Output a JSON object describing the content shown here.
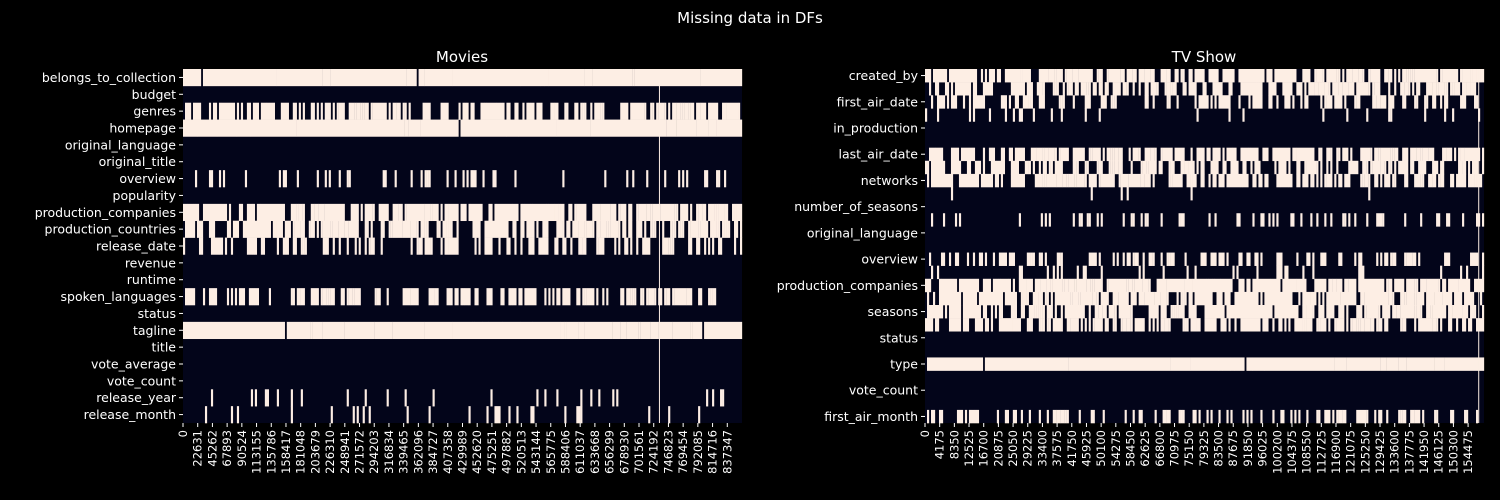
{
  "figure": {
    "suptitle": "Missing data in DFs",
    "background": "#000000"
  },
  "chart_data": [
    {
      "type": "heatmap",
      "title": "Movies",
      "colors": {
        "missing": "#fdeee4",
        "present": "#03051a",
        "axis": "#ffffff"
      },
      "legend": "none",
      "grid": false,
      "ylabels": [
        "belongs_to_collection",
        "budget",
        "genres",
        "homepage",
        "original_language",
        "original_title",
        "overview",
        "popularity",
        "production_companies",
        "production_countries",
        "release_date",
        "revenue",
        "runtime",
        "spoken_languages",
        "status",
        "tagline",
        "title",
        "vote_average",
        "vote_count",
        "release_year",
        "release_month"
      ],
      "xticks": [
        "0",
        "22631",
        "45262",
        "67893",
        "90524",
        "113155",
        "135786",
        "158417",
        "181048",
        "203679",
        "226310",
        "248941",
        "271572",
        "294203",
        "316834",
        "339465",
        "362096",
        "384727",
        "407358",
        "429989",
        "452620",
        "475251",
        "497882",
        "520513",
        "543144",
        "565775",
        "588406",
        "611037",
        "633668",
        "656299",
        "678930",
        "701561",
        "724192",
        "746823",
        "769454",
        "792085",
        "814716",
        "837347"
      ],
      "xlim": [
        0,
        860000
      ],
      "missing_density": [
        0.93,
        0.0,
        0.45,
        0.93,
        0.0,
        0.0,
        0.15,
        0.0,
        0.62,
        0.5,
        0.3,
        0.0,
        0.0,
        0.42,
        0.0,
        0.9,
        0.0,
        0.0,
        0.0,
        0.1,
        0.1
      ],
      "highlight_x": 733000
    },
    {
      "type": "heatmap",
      "title": "TV Show",
      "colors": {
        "missing": "#fdeee4",
        "present": "#03051a",
        "axis": "#ffffff"
      },
      "legend": "none",
      "grid": false,
      "ylabels": [
        "created_by",
        "",
        "first_air_date",
        "",
        "in_production",
        "",
        "last_air_date",
        "",
        "networks",
        "",
        "number_of_seasons",
        "",
        "original_language",
        "",
        "overview",
        "",
        "production_companies",
        "",
        "seasons",
        "",
        "status",
        "",
        "type",
        "",
        "vote_count",
        "",
        "first_air_month"
      ],
      "xticks": [
        "0",
        "4175",
        "8350",
        "12525",
        "16700",
        "20875",
        "25050",
        "29225",
        "33400",
        "37575",
        "41750",
        "45925",
        "50100",
        "54275",
        "58450",
        "62625",
        "66800",
        "70975",
        "75150",
        "79325",
        "83500",
        "87675",
        "91850",
        "96025",
        "100200",
        "104375",
        "108550",
        "112725",
        "116900",
        "121075",
        "125250",
        "129425",
        "133600",
        "137775",
        "141950",
        "146125",
        "150300",
        "154475"
      ],
      "xlim": [
        0,
        159000
      ],
      "missing_density": [
        0.65,
        0.45,
        0.35,
        0.1,
        0.0,
        0.0,
        0.55,
        0.45,
        0.5,
        0.02,
        0.0,
        0.2,
        0.0,
        0.0,
        0.3,
        0.1,
        0.7,
        0.6,
        0.55,
        0.5,
        0.0,
        0.0,
        0.92,
        0.0,
        0.0,
        0.0,
        0.3
      ],
      "highlight_x": 157500
    }
  ]
}
